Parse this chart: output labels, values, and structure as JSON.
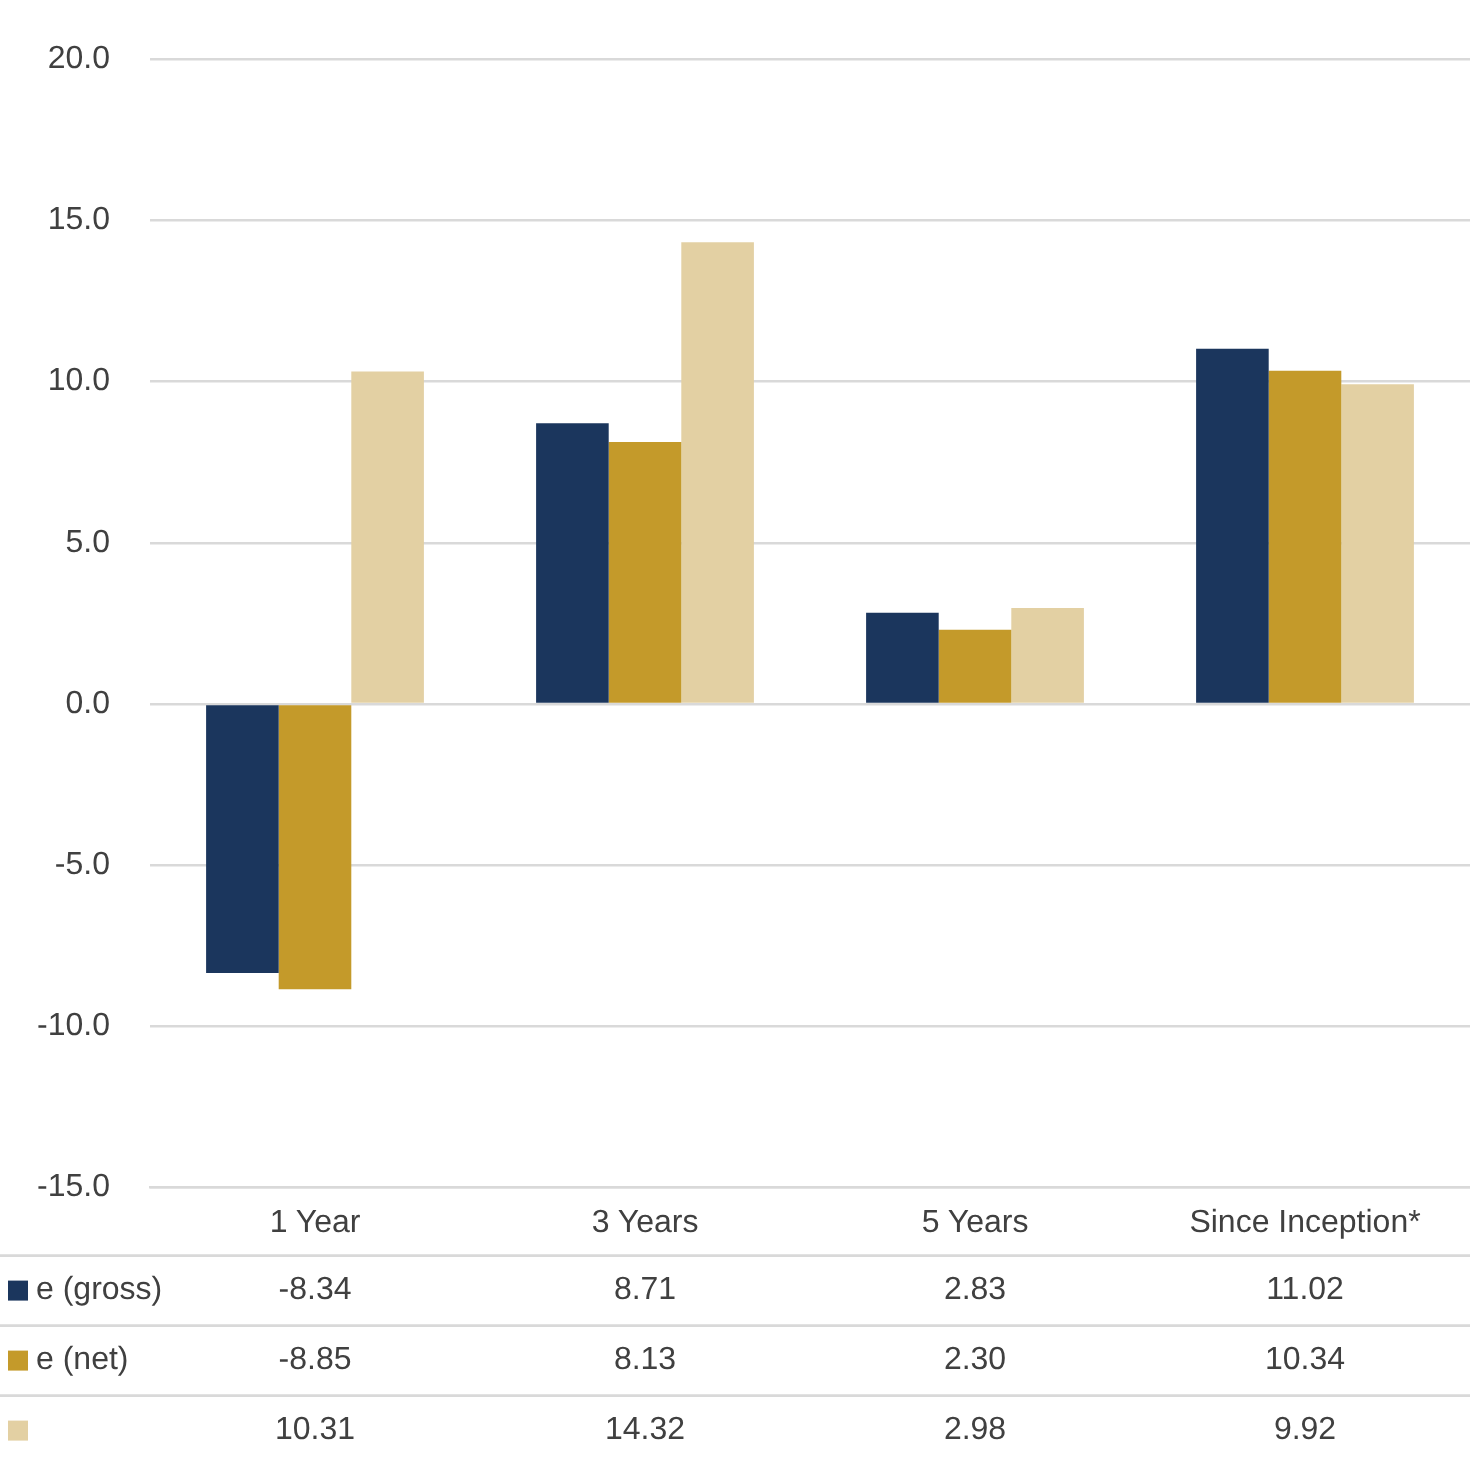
{
  "chart_data": {
    "type": "bar",
    "categories": [
      "1 Year",
      "3 Years",
      "5 Years",
      "Since Inception*"
    ],
    "series": [
      {
        "name": "e (gross)",
        "color": "#1b365d",
        "values": [
          -8.34,
          8.71,
          2.83,
          11.02
        ],
        "value_labels": [
          "-8.34",
          "8.71",
          "2.83",
          "11.02"
        ]
      },
      {
        "name": "e (net)",
        "color": "#c49a2a",
        "values": [
          -8.85,
          8.13,
          2.3,
          10.34
        ],
        "value_labels": [
          "-8.85",
          "8.13",
          "2.30",
          "10.34"
        ]
      },
      {
        "color": "#e3d0a3",
        "values": [
          10.31,
          14.32,
          2.98,
          9.92
        ],
        "value_labels": [
          "10.31",
          "14.32",
          "2.98",
          "9.92"
        ]
      }
    ],
    "ylim": [
      -15,
      20
    ],
    "yticks": [
      {
        "value": -15,
        "label": "-15.0"
      },
      {
        "value": -10,
        "label": "-10.0"
      },
      {
        "value": -5,
        "label": "-5.0"
      },
      {
        "value": 0,
        "label": "0.0"
      },
      {
        "value": 5,
        "label": "5.0"
      },
      {
        "value": 10,
        "label": "10.0"
      },
      {
        "value": 15,
        "label": "15.0"
      },
      {
        "value": 20,
        "label": "20.0"
      }
    ],
    "grid": "y",
    "legend": "bottom left"
  }
}
